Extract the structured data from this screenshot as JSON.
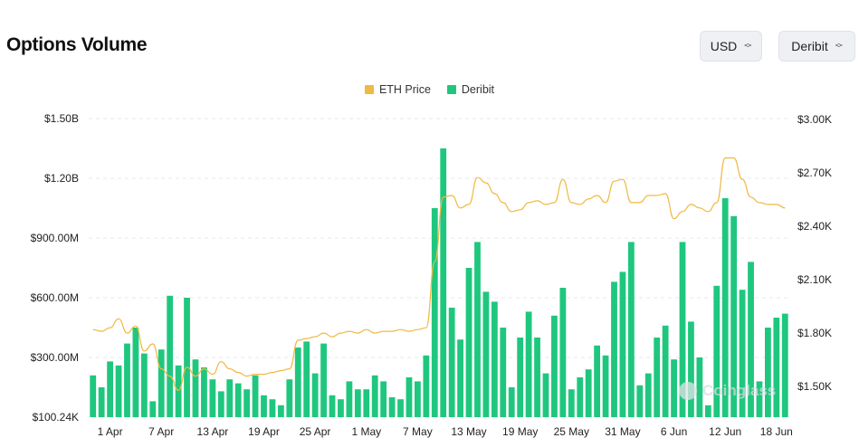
{
  "header": {
    "title": "Options Volume",
    "currency_select": "USD",
    "exchange_select": "Deribit"
  },
  "legend": [
    {
      "label": "ETH Price",
      "color": "#f0b942"
    },
    {
      "label": "Deribit",
      "color": "#1fc77e"
    }
  ],
  "watermark": "Coinglass",
  "chart_data": {
    "type": "bar",
    "grid": "horizontal dashed",
    "legend_placement": "top-center",
    "x_tick_labels": [
      "1 Apr",
      "7 Apr",
      "13 Apr",
      "19 Apr",
      "25 Apr",
      "1 May",
      "7 May",
      "13 May",
      "19 May",
      "25 May",
      "31 May",
      "6 Jun",
      "12 Jun",
      "18 Jun"
    ],
    "x_tick_day_index": [
      2,
      8,
      14,
      20,
      26,
      32,
      38,
      44,
      50,
      56,
      62,
      68,
      74,
      80
    ],
    "left_axis": {
      "tick_labels": [
        "$100.24K",
        "$300.00M",
        "$600.00M",
        "$900.00M",
        "$1.20B",
        "$1.50B"
      ],
      "ylim": [
        0,
        1500000000
      ]
    },
    "right_axis": {
      "tick_labels": [
        "$1.50K",
        "$1.80K",
        "$2.10K",
        "$2.40K",
        "$2.70K",
        "$3.00K"
      ],
      "ylim": [
        1330,
        3000
      ]
    },
    "series": [
      {
        "name": "Deribit",
        "type": "bar",
        "axis": "left",
        "values": [
          210000000,
          150000000,
          280000000,
          260000000,
          370000000,
          450000000,
          320000000,
          80000000,
          340000000,
          610000000,
          260000000,
          600000000,
          290000000,
          250000000,
          190000000,
          130000000,
          190000000,
          170000000,
          140000000,
          210000000,
          110000000,
          90000000,
          60000000,
          190000000,
          350000000,
          380000000,
          220000000,
          370000000,
          110000000,
          90000000,
          180000000,
          140000000,
          140000000,
          210000000,
          180000000,
          100000000,
          90000000,
          200000000,
          180000000,
          310000000,
          1050000000,
          1350000000,
          550000000,
          390000000,
          750000000,
          880000000,
          630000000,
          580000000,
          450000000,
          150000000,
          400000000,
          530000000,
          400000000,
          220000000,
          510000000,
          650000000,
          140000000,
          200000000,
          240000000,
          360000000,
          310000000,
          680000000,
          730000000,
          880000000,
          160000000,
          220000000,
          400000000,
          460000000,
          290000000,
          880000000,
          480000000,
          300000000,
          60000000,
          660000000,
          1100000000,
          1010000000,
          640000000,
          780000000,
          180000000,
          450000000,
          500000000,
          520000000
        ]
      },
      {
        "name": "ETH Price",
        "type": "line",
        "axis": "right",
        "values": [
          1820,
          1810,
          1830,
          1880,
          1800,
          1840,
          1700,
          1740,
          1600,
          1560,
          1480,
          1610,
          1560,
          1600,
          1570,
          1640,
          1600,
          1580,
          1560,
          1570,
          1570,
          1580,
          1590,
          1600,
          1760,
          1770,
          1780,
          1800,
          1780,
          1800,
          1810,
          1800,
          1820,
          1800,
          1810,
          1810,
          1820,
          1810,
          1820,
          1830,
          2200,
          2560,
          2570,
          2500,
          2520,
          2670,
          2640,
          2580,
          2530,
          2480,
          2490,
          2530,
          2540,
          2520,
          2530,
          2660,
          2530,
          2520,
          2550,
          2570,
          2530,
          2650,
          2660,
          2530,
          2530,
          2570,
          2570,
          2580,
          2440,
          2480,
          2520,
          2500,
          2480,
          2530,
          2780,
          2780,
          2660,
          2560,
          2530,
          2520,
          2520,
          2500
        ]
      }
    ]
  }
}
